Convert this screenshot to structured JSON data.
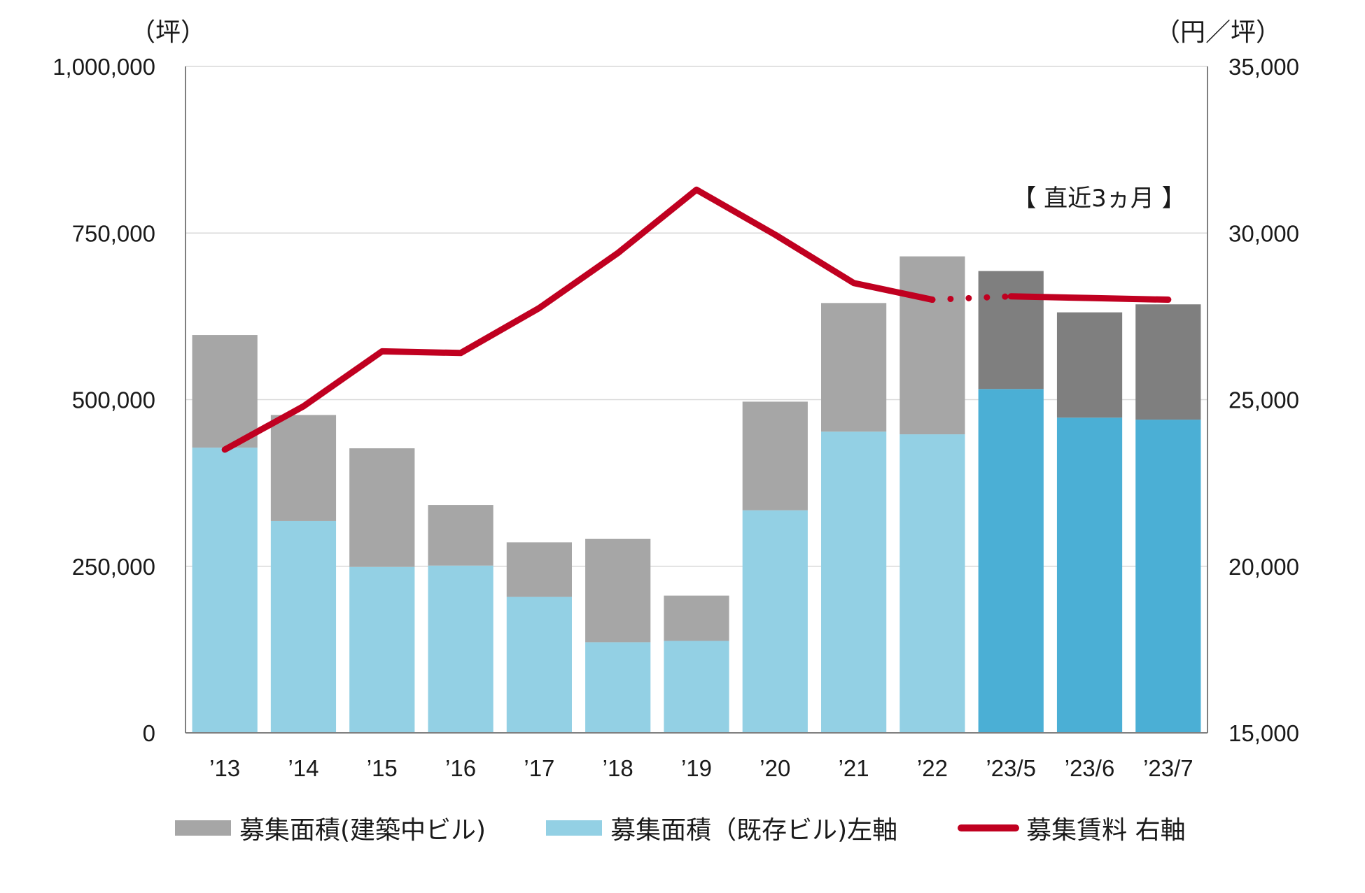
{
  "chart_data": {
    "type": "bar",
    "stacked": true,
    "categories": [
      "’13",
      "’14",
      "’15",
      "’16",
      "’17",
      "’18",
      "’19",
      "’20",
      "’21",
      "’22",
      "’23/5",
      "’23/6",
      "’23/7"
    ],
    "series": [
      {
        "name": "募集面積（既存ビル）左軸",
        "type": "bar",
        "axis": "left",
        "values": [
          428000,
          318000,
          249000,
          251000,
          204000,
          136000,
          138000,
          334000,
          452000,
          448000,
          516000,
          473000,
          470000
        ],
        "color": "#93d0e4",
        "recent_color": "#4bafd5"
      },
      {
        "name": "募集面積（建築中ビル）",
        "type": "bar",
        "axis": "left",
        "values": [
          169000,
          159000,
          178000,
          91000,
          82000,
          155000,
          68000,
          163000,
          193000,
          267000,
          177000,
          158000,
          173000
        ],
        "color": "#a6a6a6",
        "recent_color": "#7f7f7f"
      },
      {
        "name": "募集賃料 右軸",
        "type": "line",
        "axis": "right",
        "values": [
          23500,
          24800,
          26450,
          26400,
          27750,
          29400,
          31300,
          29950,
          28500,
          28000,
          28100,
          28050,
          28000
        ],
        "color": "#c00020"
      }
    ],
    "recent_start_index": 10,
    "left_axis": {
      "unit": "（坪）",
      "ylim": [
        0,
        1000000
      ],
      "ticks": [
        "0",
        "250,000",
        "500,000",
        "750,000",
        "1,000,000"
      ]
    },
    "right_axis": {
      "unit": "（円／坪）",
      "ylim": [
        15000,
        35000
      ],
      "ticks": [
        "15,000",
        "20,000",
        "25,000",
        "30,000",
        "35,000"
      ]
    },
    "annotation": "【 直近3ヵ月 】",
    "grid": true,
    "legend_position": "bottom"
  },
  "legend": {
    "items": [
      {
        "label": "募集面積(建築中ビル)",
        "color": "#a6a6a6",
        "kind": "bar"
      },
      {
        "label": "募集面積（既存ビル)左軸",
        "color": "#93d0e4",
        "kind": "bar"
      },
      {
        "label": "募集賃料 右軸",
        "color": "#c00020",
        "kind": "line"
      }
    ]
  }
}
